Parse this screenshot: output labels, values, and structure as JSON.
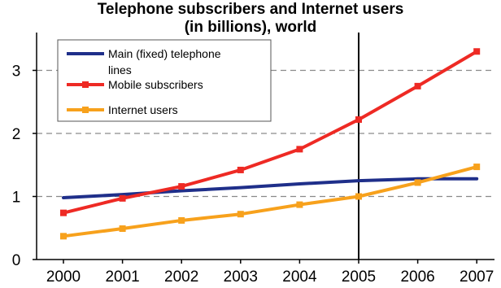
{
  "chart_data": {
    "type": "line",
    "title": "Telephone subscribers and Internet users",
    "subtitle": "(in billions), world",
    "xlabel": "",
    "ylabel": "",
    "x": [
      "2000",
      "2001",
      "2002",
      "2003",
      "2004",
      "2005",
      "2006",
      "2007"
    ],
    "ylim": [
      0,
      3.5
    ],
    "yticks": [
      0,
      1,
      2,
      3
    ],
    "grid": "dashed horizontal",
    "legend_position": "top-left",
    "vertical_marker_at": "2005",
    "series": [
      {
        "name": "Main (fixed) telephone lines",
        "color": "#1f2f8a",
        "values": [
          0.98,
          1.03,
          1.09,
          1.14,
          1.2,
          1.25,
          1.28,
          1.28
        ],
        "markers": false
      },
      {
        "name": "Mobile subscribers",
        "color": "#ee2a24",
        "values": [
          0.74,
          0.97,
          1.16,
          1.42,
          1.75,
          2.22,
          2.75,
          3.3
        ],
        "markers": true
      },
      {
        "name": "Internet users",
        "color": "#f7a11c",
        "values": [
          0.37,
          0.49,
          0.62,
          0.72,
          0.87,
          1.0,
          1.22,
          1.47
        ],
        "markers": true
      }
    ]
  }
}
